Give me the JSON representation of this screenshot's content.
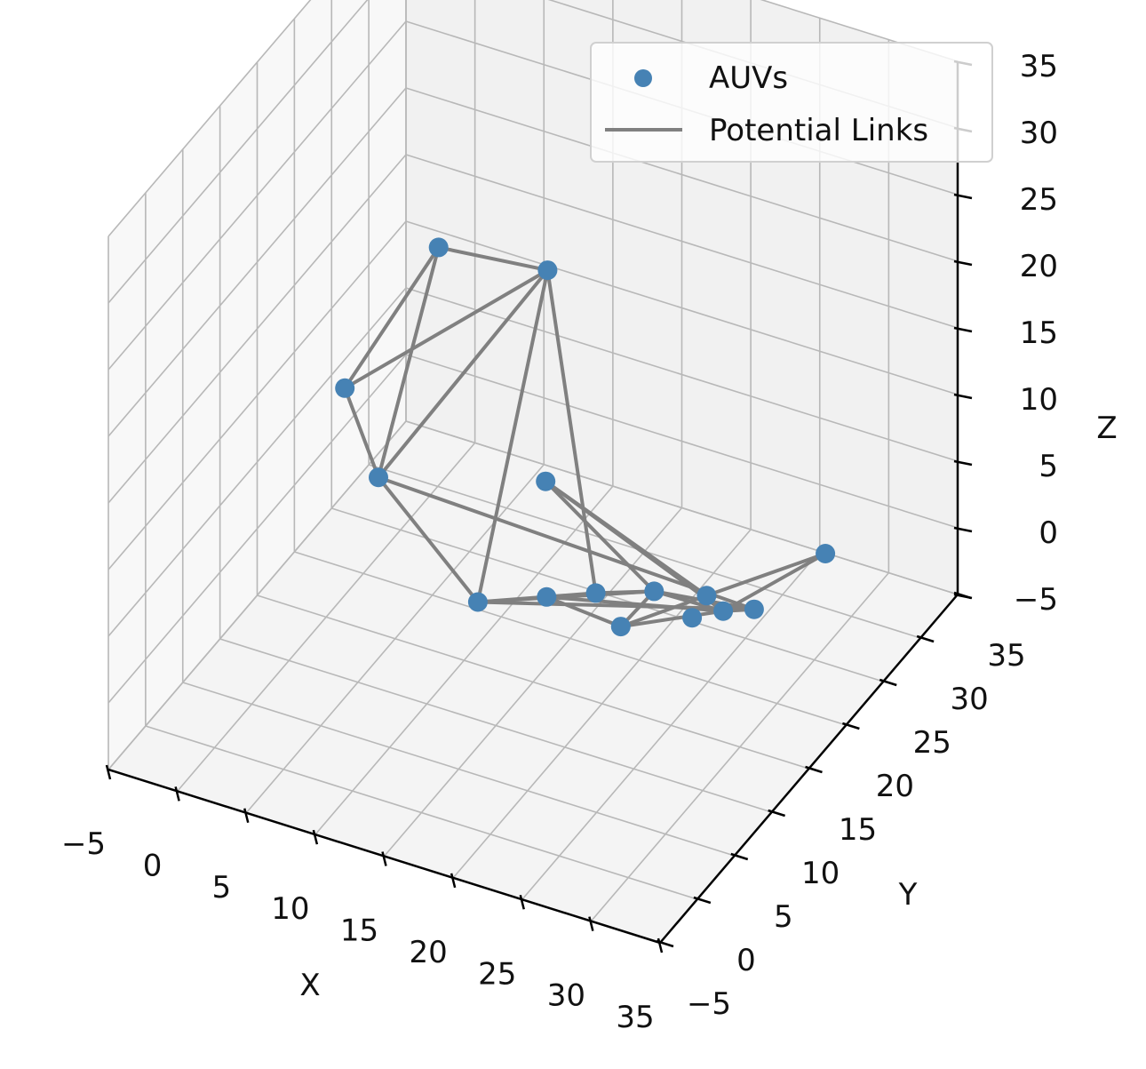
{
  "chart_data": {
    "type": "scatter",
    "projection": "3d",
    "xlabel": "X",
    "ylabel": "Y",
    "zlabel": "Z",
    "xlim": [
      -5,
      35
    ],
    "ylim": [
      -5,
      35
    ],
    "zlim": [
      -5,
      35
    ],
    "xticks": [
      "−5",
      "0",
      "5",
      "10",
      "15",
      "20",
      "25",
      "30",
      "35"
    ],
    "yticks": [
      "−5",
      "0",
      "5",
      "10",
      "15",
      "20",
      "25",
      "30",
      "35"
    ],
    "zticks": [
      "−5",
      "0",
      "5",
      "10",
      "15",
      "20",
      "25",
      "30",
      "35"
    ],
    "grid": true,
    "legend": {
      "placement": "top-right",
      "entries": [
        {
          "label": "AUVs",
          "kind": "marker",
          "color": "#4682b4"
        },
        {
          "label": "Potential Links",
          "kind": "line",
          "color": "#808080"
        }
      ]
    },
    "series": [
      {
        "name": "AUVs",
        "color": "#4682b4",
        "points": [
          {
            "x": 4.0,
            "y": 22.7,
            "z": 19.0
          },
          {
            "x": 10.5,
            "y": 25.3,
            "z": 17.7
          },
          {
            "x": -0.8,
            "y": 19.0,
            "z": 9.3
          },
          {
            "x": 3.2,
            "y": 16.1,
            "z": 5.8
          },
          {
            "x": 12.3,
            "y": 21.7,
            "z": 4.8
          },
          {
            "x": 11.0,
            "y": 15.0,
            "z": -0.3
          },
          {
            "x": 17.5,
            "y": 18.8,
            "z": 0.0
          },
          {
            "x": 23.3,
            "y": 21.0,
            "z": -1.4
          },
          {
            "x": 26.5,
            "y": 23.4,
            "z": -1.3
          },
          {
            "x": 27.8,
            "y": 14.6,
            "z": 5.9
          },
          {
            "x": 32.8,
            "y": 21.3,
            "z": 6.3
          },
          {
            "x": 22.7,
            "y": 17.0,
            "z": 3.0
          },
          {
            "x": 26.9,
            "y": 18.5,
            "z": 1.9
          },
          {
            "x": 18.2,
            "y": 10.9,
            "z": 5.1
          },
          {
            "x": 24.6,
            "y": 9.0,
            "z": 6.2
          }
        ]
      },
      {
        "name": "Potential Links",
        "color": "#808080",
        "edges": [
          [
            0,
            1
          ],
          [
            0,
            2
          ],
          [
            0,
            3
          ],
          [
            1,
            2
          ],
          [
            1,
            3
          ],
          [
            1,
            5
          ],
          [
            1,
            6
          ],
          [
            2,
            3
          ],
          [
            3,
            5
          ],
          [
            3,
            8
          ],
          [
            5,
            6
          ],
          [
            5,
            11
          ],
          [
            5,
            8
          ],
          [
            6,
            11
          ],
          [
            4,
            11
          ],
          [
            4,
            12
          ],
          [
            4,
            9
          ],
          [
            11,
            12
          ],
          [
            11,
            13
          ],
          [
            11,
            14
          ],
          [
            11,
            8
          ],
          [
            12,
            8
          ],
          [
            12,
            14
          ],
          [
            12,
            13
          ],
          [
            12,
            10
          ],
          [
            13,
            14
          ],
          [
            14,
            9
          ],
          [
            9,
            10
          ]
        ]
      }
    ]
  }
}
